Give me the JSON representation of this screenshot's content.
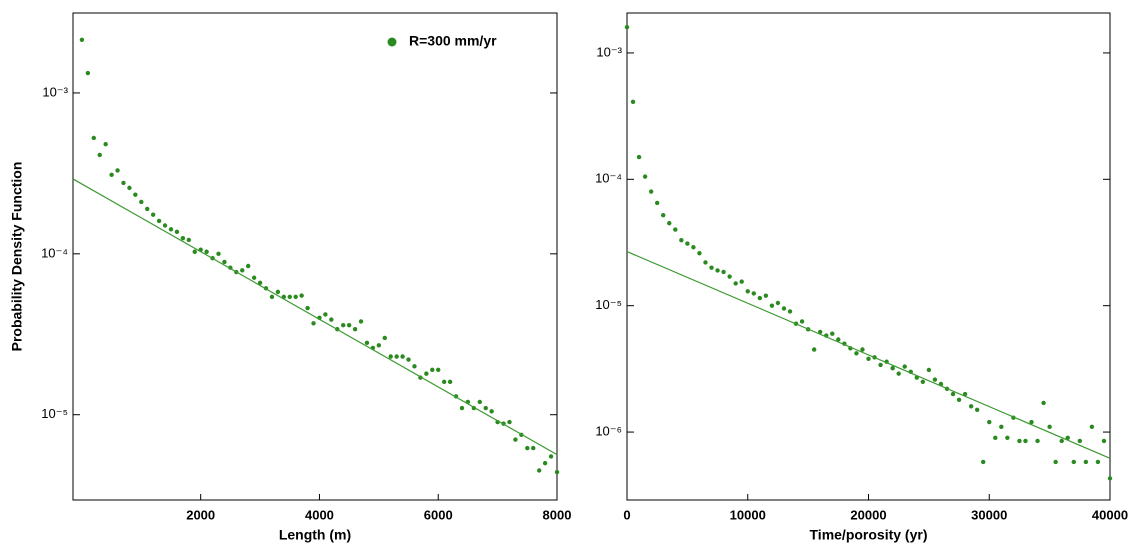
{
  "chart_data": [
    {
      "type": "scatter",
      "ylabel": "Probability Density Function",
      "xlabel": "Length (m)",
      "xlim": [
        -150,
        8000
      ],
      "xticks": [
        2000,
        4000,
        6000,
        8000
      ],
      "ylim": [
        2.95e-06,
        0.00314
      ],
      "log_y": true,
      "yticks": [
        {
          "value": 0.001,
          "label": "10⁻³"
        },
        {
          "value": 0.0001,
          "label": "10⁻⁴"
        },
        {
          "value": 1e-05,
          "label": "10⁻⁵"
        }
      ],
      "legend": "upper right",
      "series": [
        {
          "name": "R=300 mm/yr",
          "color": "#2a8a1f",
          "x": [
            0,
            100,
            200,
            300,
            400,
            500,
            600,
            700,
            800,
            900,
            1000,
            1100,
            1200,
            1300,
            1400,
            1500,
            1600,
            1700,
            1800,
            1900,
            2000,
            2100,
            2200,
            2300,
            2400,
            2500,
            2600,
            2700,
            2800,
            2900,
            3000,
            3100,
            3200,
            3300,
            3400,
            3500,
            3600,
            3700,
            3800,
            3900,
            4000,
            4100,
            4200,
            4300,
            4400,
            4500,
            4600,
            4700,
            4800,
            4900,
            5000,
            5100,
            5200,
            5300,
            5400,
            5500,
            5600,
            5700,
            5800,
            5900,
            6000,
            6100,
            6200,
            6300,
            6400,
            6500,
            6600,
            6700,
            6800,
            6900,
            7000,
            7100,
            7200,
            7300,
            7400,
            7500,
            7600,
            7700,
            7800,
            7900,
            8000
          ],
          "values": [
            0.00214,
            0.00133,
            0.000525,
            0.000412,
            0.00048,
            0.00031,
            0.00033,
            0.000276,
            0.000257,
            0.000233,
            0.00021,
            0.00019,
            0.000175,
            0.00016,
            0.00015,
            0.000142,
            0.000137,
            0.000125,
            0.000122,
            0.000103,
            0.000106,
            0.000103,
            9.4e-05,
            0.0001,
            8.9e-05,
            8.2e-05,
            7.7e-05,
            7.9e-05,
            8.4e-05,
            7.1e-05,
            6.6e-05,
            6.1e-05,
            5.4e-05,
            5.8e-05,
            5.4e-05,
            5.4e-05,
            5.4e-05,
            5.5e-05,
            4.6e-05,
            3.7e-05,
            4e-05,
            4.2e-05,
            3.9e-05,
            3.4e-05,
            3.6e-05,
            3.6e-05,
            3.4e-05,
            3.8e-05,
            2.8e-05,
            2.6e-05,
            2.7e-05,
            3e-05,
            2.3e-05,
            2.3e-05,
            2.3e-05,
            2.2e-05,
            2e-05,
            1.7e-05,
            1.8e-05,
            1.9e-05,
            1.9e-05,
            1.6e-05,
            1.6e-05,
            1.3e-05,
            1.1e-05,
            1.2e-05,
            1.1e-05,
            1.2e-05,
            1.1e-05,
            1.05e-05,
            9e-06,
            8.8e-06,
            9e-06,
            7e-06,
            7.5e-06,
            6.2e-06,
            6.2e-06,
            4.5e-06,
            5e-06,
            5.5e-06,
            4.4e-06
          ]
        },
        {
          "type": "line",
          "color": "#3c9a32",
          "x": [
            -150,
            8000
          ],
          "values": [
            0.000292,
            5.65e-06
          ]
        }
      ]
    },
    {
      "type": "scatter",
      "xlabel": "Time/porosity (yr)",
      "xlim": [
        0,
        40000
      ],
      "xticks": [
        0,
        10000,
        20000,
        30000,
        40000
      ],
      "ylim": [
        2.9e-07,
        0.00207
      ],
      "log_y": true,
      "yticks": [
        {
          "value": 0.001,
          "label": "10⁻³"
        },
        {
          "value": 0.0001,
          "label": "10⁻⁴"
        },
        {
          "value": 1e-05,
          "label": "10⁻⁵"
        },
        {
          "value": 1e-06,
          "label": "10⁻⁶"
        }
      ],
      "series": [
        {
          "color": "#2a8a1f",
          "x": [
            0,
            500,
            1000,
            1500,
            2000,
            2500,
            3000,
            3500,
            4000,
            4500,
            5000,
            5500,
            6000,
            6500,
            7000,
            7500,
            8000,
            8500,
            9000,
            9500,
            10000,
            10500,
            11000,
            11500,
            12000,
            12500,
            13000,
            13500,
            14000,
            14500,
            15000,
            15500,
            16000,
            16500,
            17000,
            17500,
            18000,
            18500,
            19000,
            19500,
            20000,
            20500,
            21000,
            21500,
            22000,
            22500,
            23000,
            23500,
            24000,
            24500,
            25000,
            25500,
            26000,
            26500,
            27000,
            27500,
            28000,
            28500,
            29000,
            29500,
            30000,
            30500,
            31000,
            31500,
            32000,
            32500,
            33000,
            33500,
            34000,
            34500,
            35000,
            35500,
            36000,
            36500,
            37000,
            37500,
            38000,
            38500,
            39000,
            39500,
            40000
          ],
          "values": [
            0.0016,
            0.00041,
            0.00015,
            0.000105,
            8e-05,
            6.5e-05,
            5.2e-05,
            4.5e-05,
            4e-05,
            3.3e-05,
            3.1e-05,
            2.9e-05,
            2.6e-05,
            2.2e-05,
            2e-05,
            1.9e-05,
            1.85e-05,
            1.7e-05,
            1.5e-05,
            1.55e-05,
            1.3e-05,
            1.25e-05,
            1.15e-05,
            1.2e-05,
            1e-05,
            1.05e-05,
            9.5e-06,
            9e-06,
            7.2e-06,
            7.5e-06,
            6.5e-06,
            4.5e-06,
            6.2e-06,
            5.8e-06,
            6e-06,
            5.4e-06,
            5e-06,
            4.6e-06,
            4.2e-06,
            4.5e-06,
            3.8e-06,
            3.9e-06,
            3.4e-06,
            3.6e-06,
            3.2e-06,
            2.9e-06,
            3.3e-06,
            3e-06,
            2.7e-06,
            2.5e-06,
            3.1e-06,
            2.6e-06,
            2.4e-06,
            2.2e-06,
            2e-06,
            1.8e-06,
            2e-06,
            1.6e-06,
            1.5e-06,
            5.8e-07,
            1.2e-06,
            9e-07,
            1.1e-06,
            9e-07,
            1.3e-06,
            8.5e-07,
            8.5e-07,
            1.2e-06,
            8.5e-07,
            1.7e-06,
            1.1e-06,
            5.8e-07,
            8.5e-07,
            9e-07,
            5.8e-07,
            8.5e-07,
            5.8e-07,
            1.1e-06,
            5.8e-07,
            8.5e-07,
            4.3e-07
          ]
        },
        {
          "type": "line",
          "color": "#3c9a32",
          "x": [
            0,
            40000
          ],
          "values": [
            2.68e-05,
            6.2e-07
          ]
        }
      ]
    }
  ]
}
